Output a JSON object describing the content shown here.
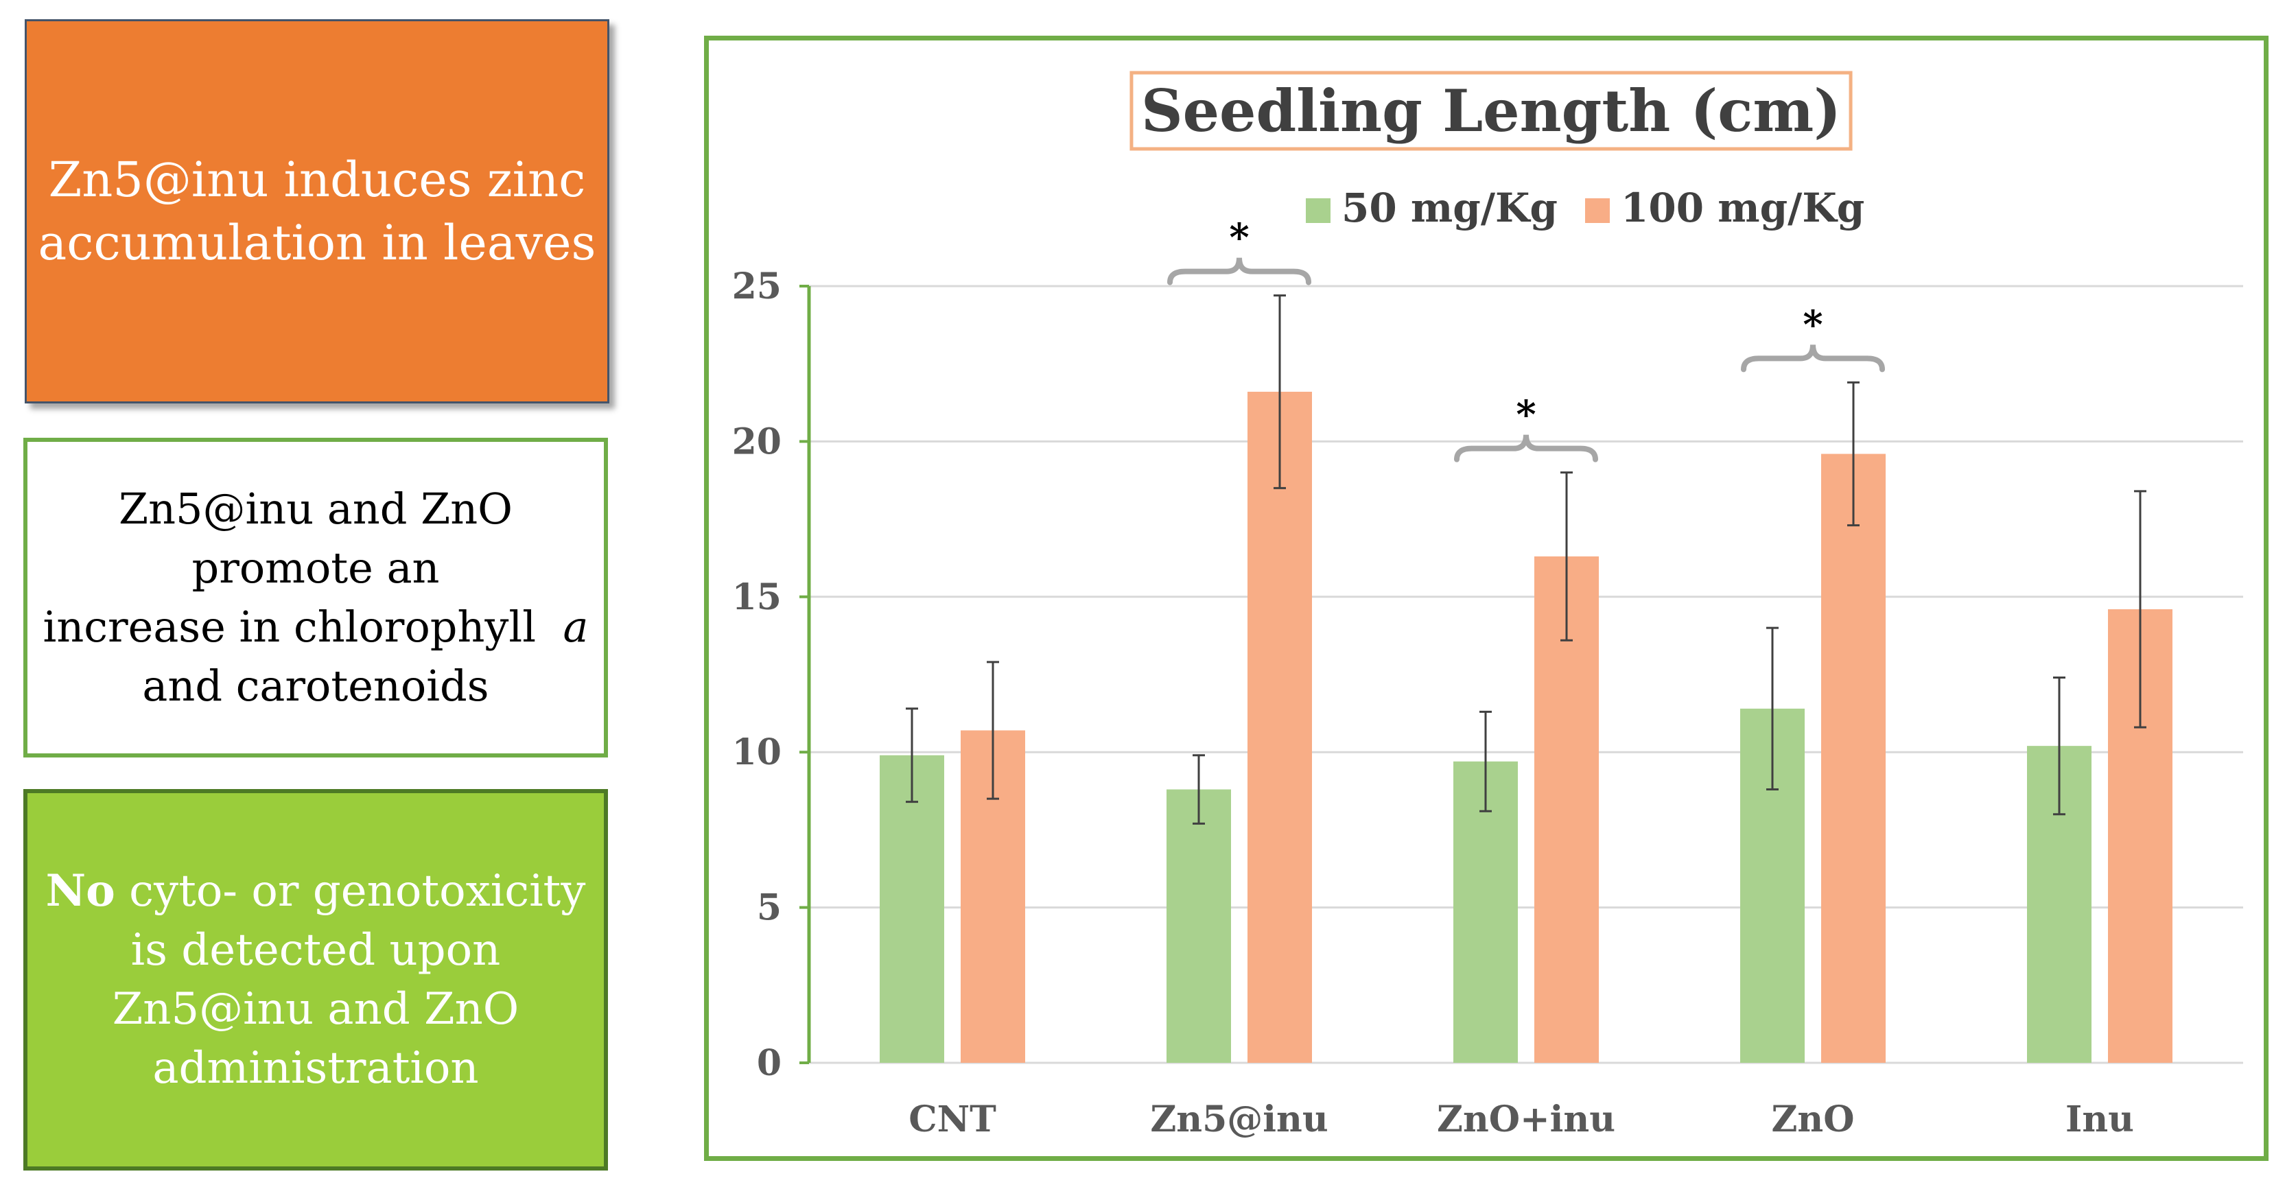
{
  "left_panel": {
    "box1": {
      "lines": [
        "Zn5@inu induces zinc",
        "accumulation in leaves"
      ]
    },
    "box2": {
      "line1": "Zn5@inu and ZnO",
      "line2": "promote an",
      "line3_text": "increase in chlorophyll",
      "line3_italic": "a",
      "line4": "and carotenoids"
    },
    "box3": {
      "bold": "No",
      "line1_rest": " cyto- or genotoxicity",
      "line2": "is detected upon",
      "line3": "Zn5@inu and ZnO",
      "line4": "administration"
    }
  },
  "colors": {
    "series_50": "#a9d18e",
    "series_100": "#f8ad86",
    "frame": "#70ad47",
    "title_border": "#f4b183",
    "gridline": "#d9d9d9",
    "axis": "#70ad47",
    "errorbar": "#404040",
    "bracket": "#a6a6a6"
  },
  "chart_data": {
    "type": "bar",
    "title": "Seedling Length (cm)",
    "categories": [
      "CNT",
      "Zn5@inu",
      "ZnO+inu",
      "ZnO",
      "Inu"
    ],
    "series": [
      {
        "name": "50 mg/Kg",
        "values": [
          9.9,
          8.8,
          9.7,
          11.4,
          10.2
        ],
        "errors": [
          1.5,
          1.1,
          1.6,
          2.6,
          2.2
        ]
      },
      {
        "name": "100 mg/Kg",
        "values": [
          10.7,
          21.6,
          16.3,
          19.6,
          14.6
        ],
        "errors": [
          2.2,
          3.1,
          2.7,
          2.3,
          3.8
        ]
      }
    ],
    "significance": [
      {
        "category": "Zn5@inu",
        "label": "*"
      },
      {
        "category": "ZnO+inu",
        "label": "*"
      },
      {
        "category": "ZnO",
        "label": "*"
      }
    ],
    "ylim": [
      0,
      25
    ],
    "yticks": [
      0,
      5,
      10,
      15,
      20,
      25
    ],
    "xlabel": "",
    "ylabel": "",
    "grid": true,
    "legend": "top"
  }
}
